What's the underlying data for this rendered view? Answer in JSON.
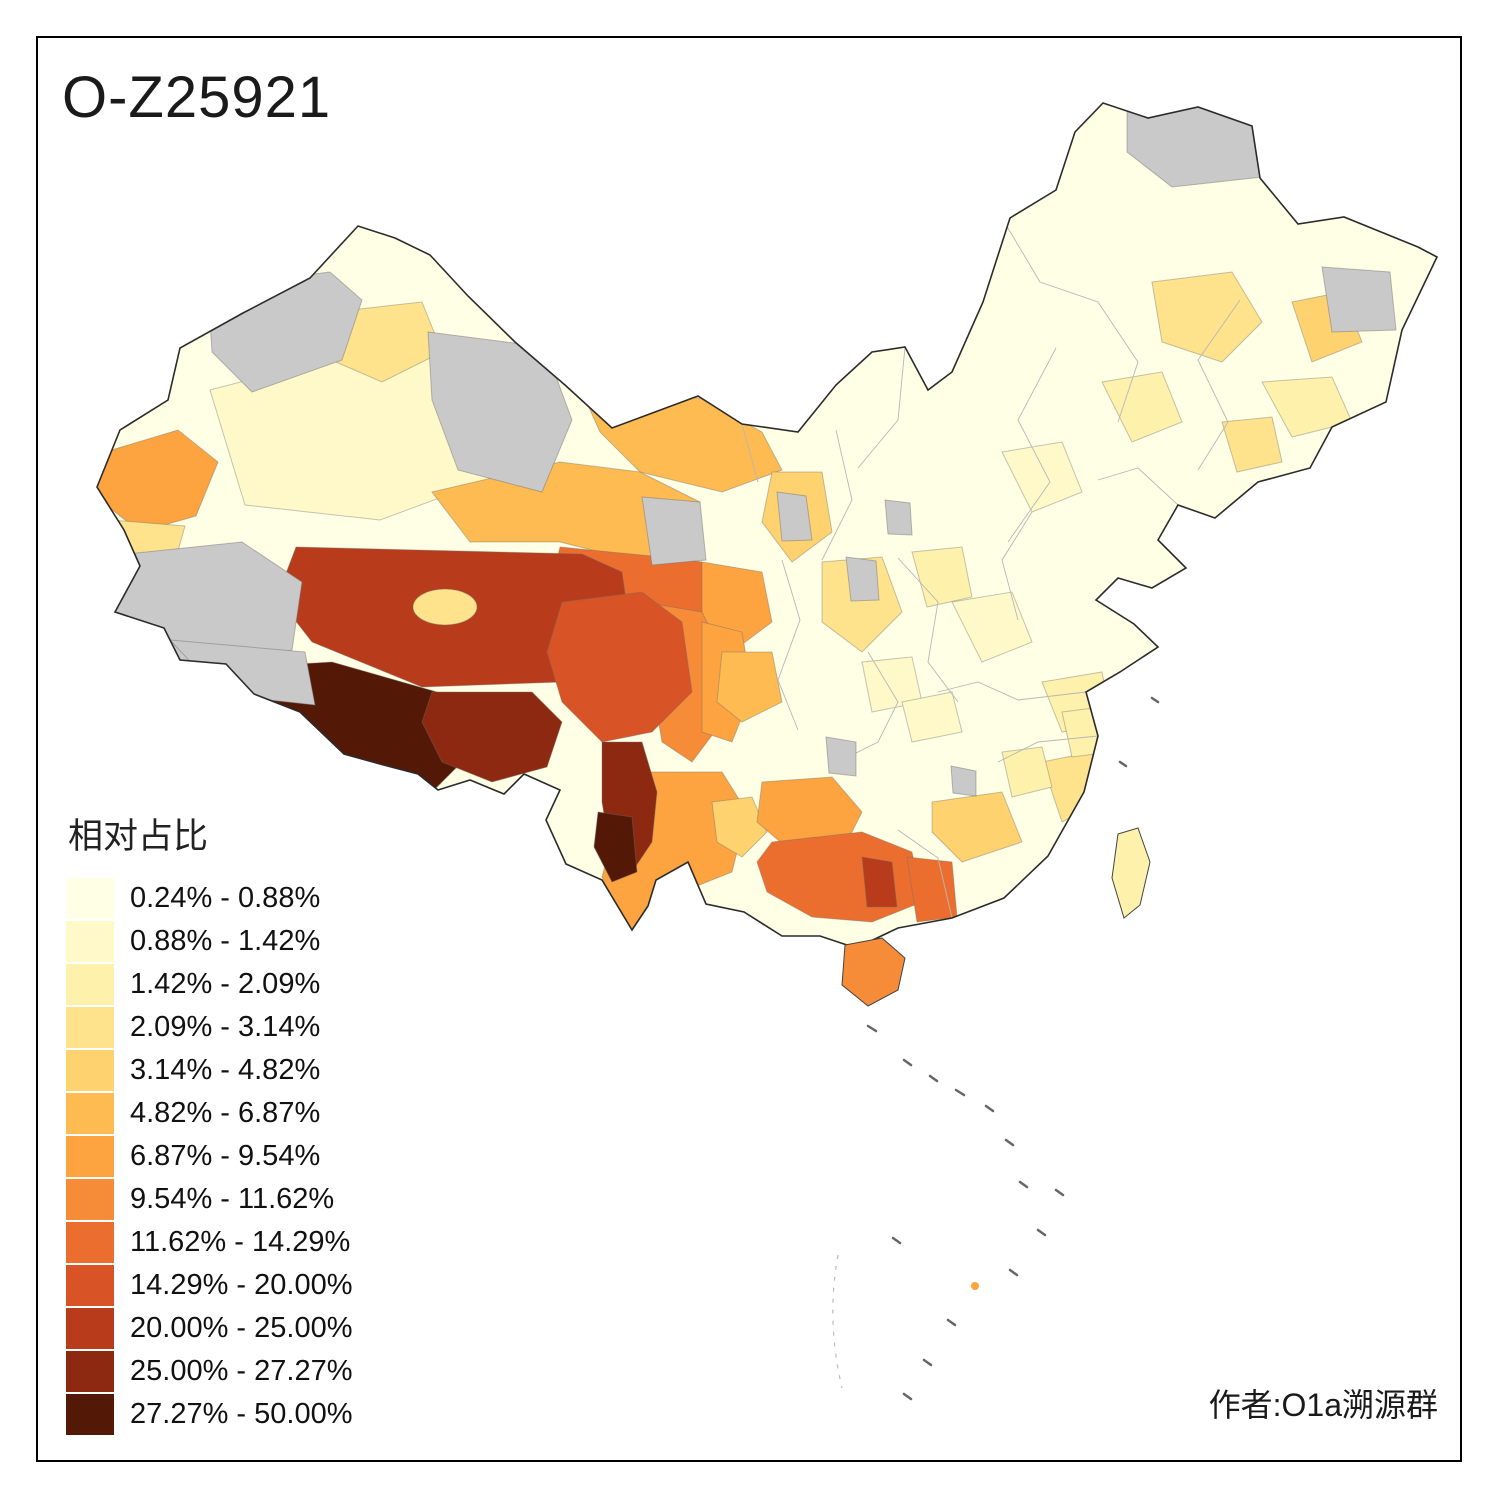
{
  "title": "O-Z25921",
  "author": "作者:O1a溯源群",
  "legend": {
    "title": "相对占比",
    "nodata_color": "#C9C9C9",
    "classes": [
      {
        "label": "0.24% - 0.88%",
        "color": "#FFFFE5"
      },
      {
        "label": "0.88% - 1.42%",
        "color": "#FFF9C9"
      },
      {
        "label": "1.42% - 2.09%",
        "color": "#FEF1AC"
      },
      {
        "label": "2.09% - 3.14%",
        "color": "#FEE38C"
      },
      {
        "label": "3.14% - 4.82%",
        "color": "#FED26E"
      },
      {
        "label": "4.82% - 6.87%",
        "color": "#FEBB52"
      },
      {
        "label": "6.87% - 9.54%",
        "color": "#FDA440"
      },
      {
        "label": "9.54% - 11.62%",
        "color": "#F68B38"
      },
      {
        "label": "11.62% - 14.29%",
        "color": "#EC6E2F"
      },
      {
        "label": "14.29% - 20.00%",
        "color": "#D85325"
      },
      {
        "label": "20.00% - 25.00%",
        "color": "#B83C1B"
      },
      {
        "label": "25.00% - 27.27%",
        "color": "#8D2910"
      },
      {
        "label": "27.27% - 50.00%",
        "color": "#541806"
      }
    ]
  },
  "map": {
    "regions": {
      "china-base": 0,
      "hainan-island": 7,
      "taiwan-island": 2,
      "xinjiang-west-orange": 6,
      "xinjiang-west-yellow": 3,
      "xinjiang-north-yellow": 3,
      "xinjiang-center-pale": 1,
      "inner-mongolia-west": 5,
      "gansu-corridor": 5,
      "ningxia": 4,
      "qinghai-main": 8,
      "tibet-north": 10,
      "qinghai-south": 9,
      "sichuan-west": 7,
      "sichuan-west-mid": 6,
      "sichuan-north": 5,
      "gansu-south": 6,
      "shaanxi-north": 3,
      "tibet-southwest": 12,
      "tibet-lhasa": 11,
      "tibet-pale-patch": 3,
      "yunnan-main": 6,
      "yunnan-nw-dark": 11,
      "yunnan-nw-darkest": 12,
      "yunnan-east": 4,
      "guizhou": 6,
      "guangxi": 8,
      "guangxi-dark": 10,
      "guangdong-west": 8,
      "hunan-south": 4,
      "fujian-coast": 3,
      "northeast-patch-1": 3,
      "northeast-patch-2": 4,
      "northeast-patch-3": 2,
      "liaoning-patch": 3,
      "inner-mongolia-east-patch": 2,
      "hebei-patch": 1,
      "shanxi-patch": 2,
      "henan-patch": 1,
      "east-patch-1": 1,
      "east-patch-2": 2,
      "east-patch-3": 1,
      "east-patch-4": 2,
      "zhejiang-patch": 2,
      "sea-dot-orange": 6,
      "xinjiang-gray-north": "nodata",
      "xinjiang-gray-east": "nodata",
      "xinjiang-gray-southwest": "nodata",
      "tibet-gray-west": "nodata",
      "qinghai-gray": "nodata",
      "gansu-gray-small": "nodata",
      "inner-mongolia-gray-small": "nodata",
      "northeast-gray-north": "nodata",
      "northeast-gray-east": "nodata",
      "shaanxi-gray-small": "nodata",
      "hubei-gray-small": "nodata",
      "jiangxi-gray-small": "nodata"
    }
  }
}
